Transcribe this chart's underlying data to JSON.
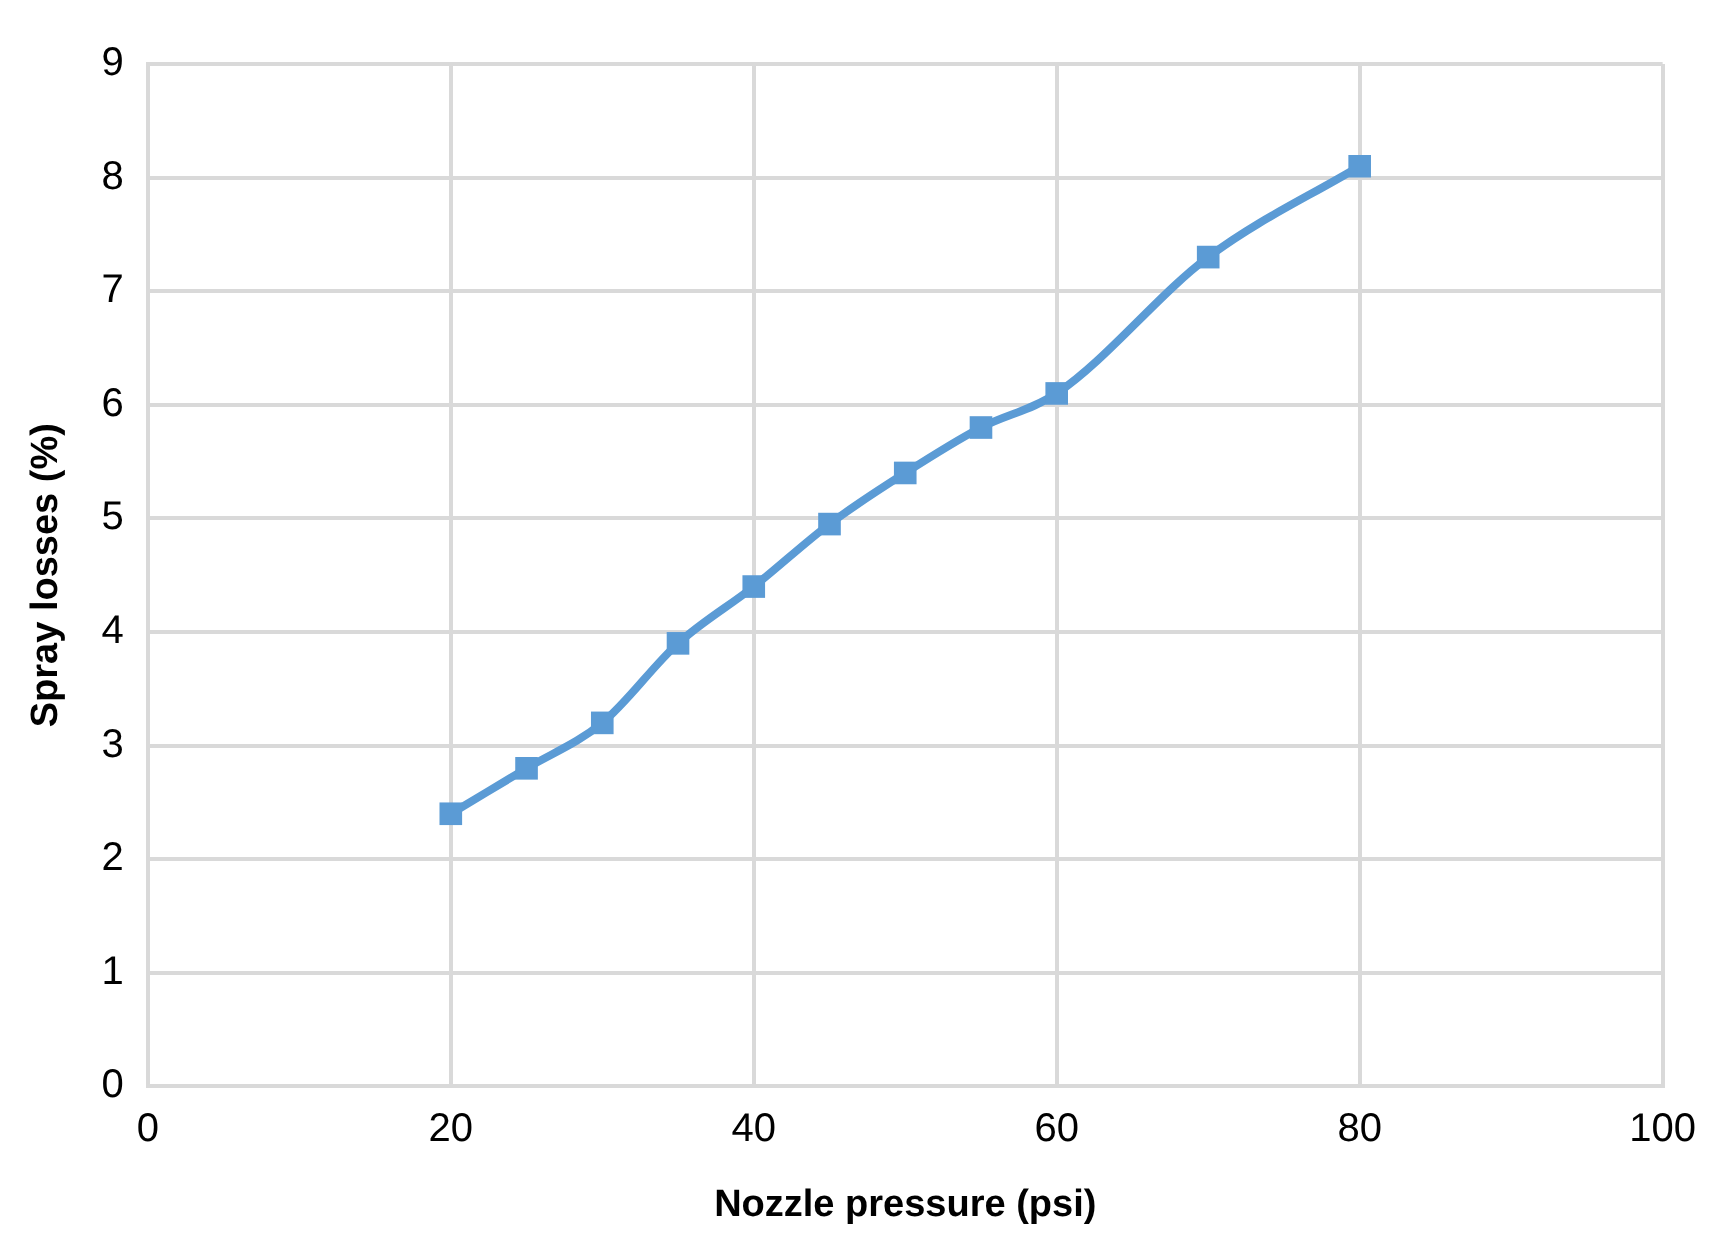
{
  "chart_data": {
    "type": "line",
    "xlabel": "Nozzle pressure (psi)",
    "ylabel": "Spray losses (%)",
    "x": [
      20,
      25,
      30,
      35,
      40,
      45,
      50,
      55,
      60,
      70,
      80
    ],
    "series": [
      {
        "color": "#5b9bd5",
        "values": [
          2.4,
          2.8,
          3.2,
          3.9,
          4.4,
          4.95,
          5.4,
          5.8,
          6.1,
          7.3,
          8.1
        ]
      }
    ],
    "xlim": [
      0,
      100
    ],
    "xticks": [
      0,
      20,
      40,
      60,
      80,
      100
    ],
    "ylim": [
      0,
      9
    ],
    "yticks": [
      0,
      1,
      2,
      3,
      4,
      5,
      6,
      7,
      8,
      9
    ],
    "grid": true,
    "legend": false,
    "marker": "square",
    "line_style": "solid"
  }
}
